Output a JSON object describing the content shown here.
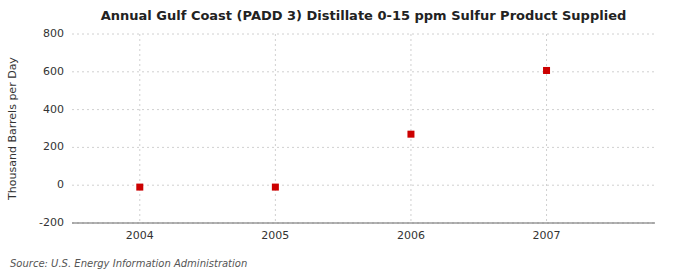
{
  "chart_data": {
    "type": "scatter",
    "title": "Annual Gulf Coast (PADD 3) Distillate 0-15 ppm Sulfur Product Supplied",
    "ylabel": "Thousand Barrels per Day",
    "source": "Source: U.S. Energy Information Administration",
    "x": [
      2004,
      2005,
      2006,
      2007
    ],
    "values": [
      -10,
      -10,
      270,
      607
    ],
    "xlim": [
      2003.5,
      2007.8
    ],
    "xticks": [
      2004,
      2005,
      2006,
      2007
    ],
    "ylim": [
      -200,
      800
    ],
    "yticks": [
      -200,
      0,
      200,
      400,
      600,
      800
    ],
    "color": "#cc0000",
    "marker": "square",
    "grid": true
  }
}
